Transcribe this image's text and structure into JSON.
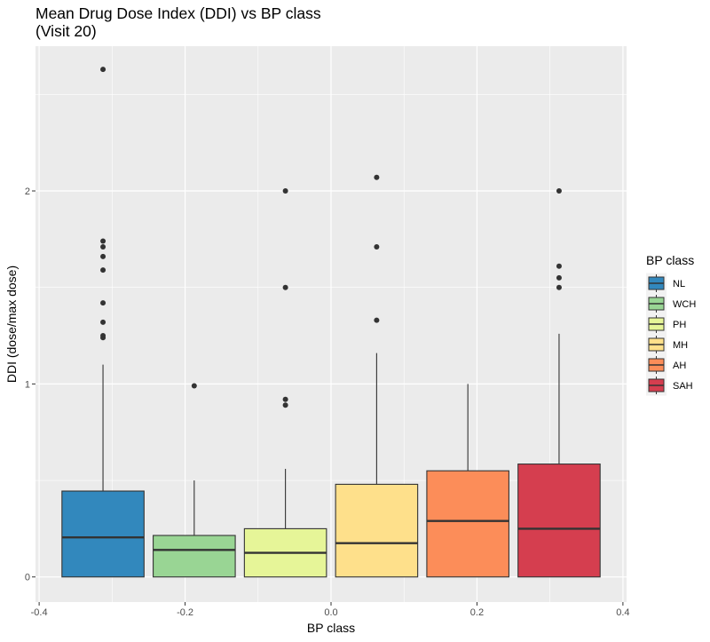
{
  "chart_data": {
    "type": "box",
    "title": "Mean Drug Dose Index (DDI) vs BP class",
    "subtitle": "(Visit 20)",
    "xlabel": "BP class",
    "ylabel": "DDI (dose/max dose)",
    "xlim": [
      -0.405,
      0.405
    ],
    "ylim": [
      -0.13,
      2.75
    ],
    "x_ticks": [
      -0.4,
      -0.2,
      0.0,
      0.2,
      0.4
    ],
    "x_tick_labels": [
      "-0.4",
      "-0.2",
      "0.0",
      "0.2",
      "0.4"
    ],
    "y_ticks": [
      0,
      1,
      2
    ],
    "y_tick_labels": [
      "0",
      "1",
      "2"
    ],
    "grid": true,
    "legend_title": "BP class",
    "legend_position": "right",
    "boxes": [
      {
        "name": "NL",
        "x": -0.3125,
        "color": "#3288BD",
        "min": 0,
        "q1": 0,
        "median": 0.205,
        "q3": 0.445,
        "max": 1.1,
        "outliers": [
          1.24,
          1.25,
          1.32,
          1.42,
          1.59,
          1.66,
          1.71,
          1.74,
          2.63
        ]
      },
      {
        "name": "WCH",
        "x": -0.1875,
        "color": "#99D594",
        "min": 0,
        "q1": 0,
        "median": 0.14,
        "q3": 0.215,
        "max": 0.5,
        "outliers": [
          0.99
        ]
      },
      {
        "name": "PH",
        "x": -0.0625,
        "color": "#E6F598",
        "min": 0,
        "q1": 0,
        "median": 0.125,
        "q3": 0.25,
        "max": 0.56,
        "outliers": [
          0.89,
          0.92,
          1.5,
          2.0
        ]
      },
      {
        "name": "MH",
        "x": 0.0625,
        "color": "#FEE08B",
        "min": 0,
        "q1": 0,
        "median": 0.175,
        "q3": 0.48,
        "max": 1.16,
        "outliers": [
          1.33,
          1.71,
          2.07
        ]
      },
      {
        "name": "AH",
        "x": 0.1875,
        "color": "#FC8D59",
        "min": 0,
        "q1": 0,
        "median": 0.29,
        "q3": 0.55,
        "max": 1.0,
        "outliers": []
      },
      {
        "name": "SAH",
        "x": 0.3125,
        "color": "#D53E4F",
        "min": 0,
        "q1": 0,
        "median": 0.25,
        "q3": 0.585,
        "max": 1.26,
        "outliers": [
          1.5,
          1.55,
          1.61,
          2.0
        ]
      }
    ],
    "box_width": 0.1125
  }
}
